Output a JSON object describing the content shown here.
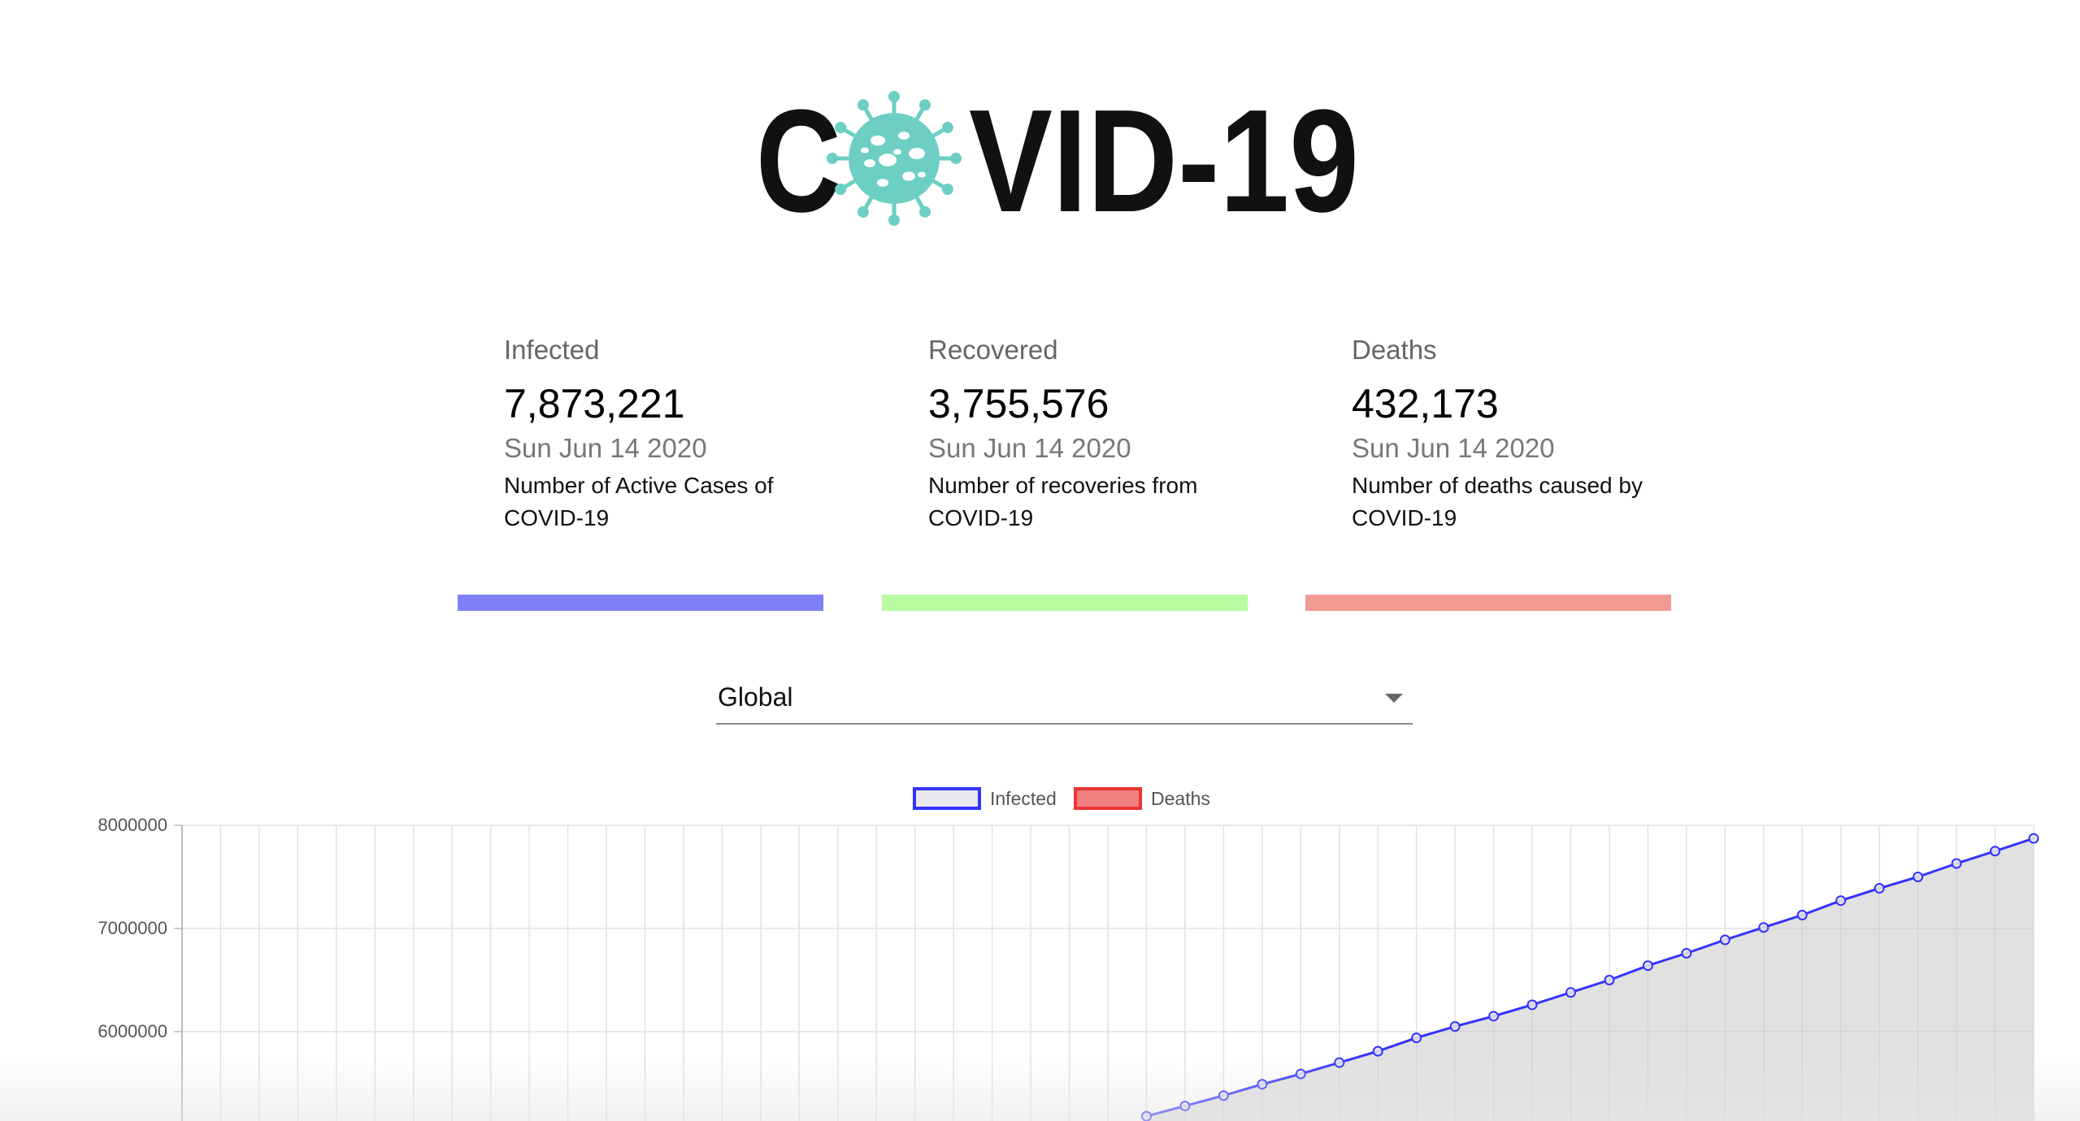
{
  "logo": {
    "text_left": "C",
    "text_right": "VID-19",
    "virus_color": "#6dcfc3"
  },
  "cards": [
    {
      "title": "Infected",
      "count": "7,873,221",
      "date": "Sun Jun 14 2020",
      "description": "Number of Active Cases of COVID-19",
      "color": "#8080f8"
    },
    {
      "title": "Recovered",
      "count": "3,755,576",
      "date": "Sun Jun 14 2020",
      "description": "Number of recoveries from COVID-19",
      "color": "#b8fba0"
    },
    {
      "title": "Deaths",
      "count": "432,173",
      "date": "Sun Jun 14 2020",
      "description": "Number of deaths caused by COVID-19",
      "color": "#f29b92"
    }
  ],
  "country_select": {
    "value": "Global"
  },
  "chart_data": {
    "type": "line",
    "series": [
      {
        "name": "Infected",
        "border_color": "#3333ff",
        "fill_color": "rgba(200,200,200,0.55)"
      },
      {
        "name": "Deaths",
        "border_color": "#ee3333",
        "fill_color": "#f08080"
      }
    ],
    "y_ticks": [
      "8000000",
      "7000000",
      "6000000"
    ],
    "ylim_visible": [
      5200000,
      8000000
    ],
    "infected_visible_points": [
      5180000,
      5280000,
      5380000,
      5490000,
      5590000,
      5700000,
      5810000,
      5940000,
      6050000,
      6150000,
      6260000,
      6380000,
      6500000,
      6640000,
      6760000,
      6890000,
      7010000,
      7130000,
      7270000,
      7390000,
      7500000,
      7630000,
      7750000,
      7873221
    ],
    "grid": true,
    "legend_position": "top-center"
  }
}
